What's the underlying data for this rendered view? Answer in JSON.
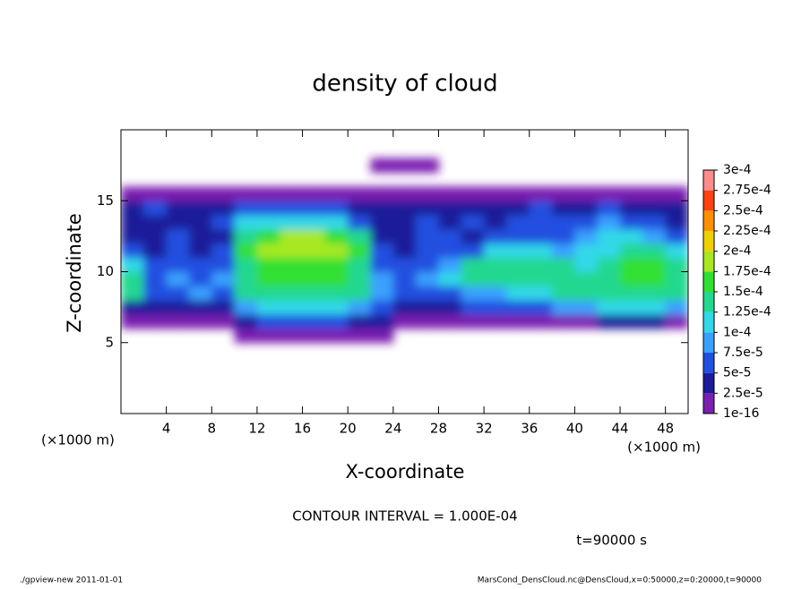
{
  "chart_data": {
    "type": "heatmap",
    "title": "density of cloud",
    "x_label": "X-coordinate",
    "y_label": "Z-coordinate",
    "x_unit": "(×1000 m)",
    "y_unit": "(×1000 m)",
    "contour_note": "CONTOUR INTERVAL = 1.000E-04",
    "time_note": "t=90000 s",
    "footer_left": "./gpview-new   2011-01-01",
    "footer_right": "MarsCond_DensCloud.nc@DensCloud,x=0:50000,z=0:20000,t=90000",
    "xlim": [
      0,
      50
    ],
    "ylim": [
      0,
      20
    ],
    "xticks": [
      4,
      8,
      12,
      16,
      20,
      24,
      28,
      32,
      36,
      40,
      44,
      48
    ],
    "yticks": [
      5,
      10,
      15
    ],
    "x": [
      1,
      3,
      5,
      7,
      9,
      11,
      13,
      15,
      17,
      19,
      21,
      23,
      25,
      27,
      29,
      31,
      33,
      35,
      37,
      39,
      41,
      43,
      45,
      47,
      49
    ],
    "y": [
      5.5,
      6.5,
      7.5,
      8.5,
      9.5,
      10.5,
      11.5,
      12.5,
      13.5,
      14.5,
      15.5,
      16.5,
      17.5
    ],
    "z": [
      [
        0,
        0,
        0,
        0,
        0,
        1e-05,
        1e-05,
        1e-05,
        1e-05,
        1e-05,
        1e-05,
        1e-05,
        0,
        0,
        0,
        0,
        0,
        0,
        0,
        0,
        0,
        0,
        0,
        0,
        0
      ],
      [
        1e-05,
        1e-05,
        1e-05,
        1e-05,
        1e-05,
        3e-05,
        6e-05,
        6e-05,
        6e-05,
        6e-05,
        3e-05,
        3e-05,
        1e-05,
        1e-05,
        1e-05,
        1e-05,
        1e-05,
        1e-05,
        1e-05,
        1e-05,
        1e-05,
        3e-05,
        3e-05,
        3e-05,
        1e-05
      ],
      [
        3e-05,
        3e-05,
        3e-05,
        3e-05,
        3e-05,
        9e-05,
        0.00011,
        0.00011,
        0.00011,
        0.00011,
        9e-05,
        6e-05,
        3e-05,
        3e-05,
        3e-05,
        6e-05,
        6e-05,
        6e-05,
        6e-05,
        9e-05,
        9e-05,
        0.00011,
        0.00011,
        0.00011,
        9e-05
      ],
      [
        0.00014,
        6e-05,
        6e-05,
        9e-05,
        6e-05,
        0.00014,
        0.00014,
        0.00014,
        0.00014,
        0.00014,
        0.00014,
        9e-05,
        6e-05,
        6e-05,
        6e-05,
        9e-05,
        9e-05,
        0.00011,
        0.00011,
        0.00014,
        0.00014,
        0.00014,
        0.00014,
        0.00014,
        0.00014
      ],
      [
        0.00014,
        6e-05,
        9e-05,
        6e-05,
        9e-05,
        0.00014,
        0.00016,
        0.00016,
        0.00016,
        0.00016,
        0.00014,
        9e-05,
        6e-05,
        9e-05,
        0.00011,
        0.00014,
        0.00014,
        0.00014,
        0.00014,
        0.00014,
        0.00014,
        0.00014,
        0.00016,
        0.00016,
        0.00014
      ],
      [
        0.00011,
        6e-05,
        6e-05,
        6e-05,
        6e-05,
        0.00014,
        0.00016,
        0.00016,
        0.00016,
        0.00016,
        0.00014,
        6e-05,
        6e-05,
        6e-05,
        9e-05,
        0.00014,
        0.00014,
        0.00014,
        0.00014,
        0.00014,
        0.00011,
        0.00014,
        0.00016,
        0.00016,
        0.00014
      ],
      [
        6e-05,
        3e-05,
        6e-05,
        3e-05,
        6e-05,
        0.00016,
        0.00018,
        0.00018,
        0.00018,
        0.00018,
        0.00016,
        6e-05,
        3e-05,
        6e-05,
        6e-05,
        6e-05,
        0.00011,
        0.00011,
        0.00011,
        9e-05,
        0.00011,
        0.00011,
        0.00014,
        0.00014,
        0.00011
      ],
      [
        3e-05,
        3e-05,
        6e-05,
        3e-05,
        3e-05,
        0.00014,
        0.00016,
        0.00018,
        0.00018,
        0.00016,
        0.00014,
        3e-05,
        3e-05,
        6e-05,
        6e-05,
        3e-05,
        6e-05,
        6e-05,
        6e-05,
        6e-05,
        9e-05,
        0.00011,
        0.00011,
        9e-05,
        6e-05
      ],
      [
        3e-05,
        3e-05,
        3e-05,
        3e-05,
        6e-05,
        0.00011,
        0.00011,
        0.00011,
        0.00011,
        0.00011,
        6e-05,
        3e-05,
        3e-05,
        6e-05,
        3e-05,
        6e-05,
        3e-05,
        6e-05,
        6e-05,
        6e-05,
        6e-05,
        9e-05,
        6e-05,
        6e-05,
        3e-05
      ],
      [
        3e-05,
        6e-05,
        3e-05,
        3e-05,
        3e-05,
        6e-05,
        6e-05,
        6e-05,
        6e-05,
        6e-05,
        3e-05,
        3e-05,
        3e-05,
        3e-05,
        3e-05,
        3e-05,
        3e-05,
        3e-05,
        6e-05,
        3e-05,
        3e-05,
        6e-05,
        3e-05,
        3e-05,
        3e-05
      ],
      [
        1e-05,
        1e-05,
        1e-05,
        1e-05,
        1e-05,
        1e-05,
        1e-05,
        1e-05,
        1e-05,
        1e-05,
        1e-05,
        1e-05,
        1e-05,
        1e-05,
        1e-05,
        1e-05,
        1e-05,
        1e-05,
        1e-05,
        1e-05,
        1e-05,
        1e-05,
        1e-05,
        1e-05,
        1e-05
      ],
      [
        0,
        0,
        0,
        0,
        0,
        0,
        0,
        0,
        0,
        0,
        0,
        0,
        0,
        0,
        0,
        0,
        0,
        0,
        0,
        0,
        0,
        0,
        0,
        0,
        0
      ],
      [
        0,
        0,
        0,
        0,
        0,
        0,
        0,
        0,
        0,
        0,
        0,
        1e-05,
        1e-05,
        1e-05,
        0,
        0,
        0,
        0,
        0,
        0,
        0,
        0,
        0,
        0,
        0
      ]
    ],
    "levels": [
      {
        "value": 1e-16,
        "label": "1e-16"
      },
      {
        "value": 2.5e-05,
        "label": "2.5e-5"
      },
      {
        "value": 5e-05,
        "label": "5e-5"
      },
      {
        "value": 7.5e-05,
        "label": "7.5e-5"
      },
      {
        "value": 0.0001,
        "label": "1e-4"
      },
      {
        "value": 0.000125,
        "label": "1.25e-4"
      },
      {
        "value": 0.00015,
        "label": "1.5e-4"
      },
      {
        "value": 0.000175,
        "label": "1.75e-4"
      },
      {
        "value": 0.0002,
        "label": "2e-4"
      },
      {
        "value": 0.000225,
        "label": "2.25e-4"
      },
      {
        "value": 0.00025,
        "label": "2.5e-4"
      },
      {
        "value": 0.000275,
        "label": "2.75e-4"
      },
      {
        "value": 0.0003,
        "label": "3e-4"
      }
    ],
    "colors": [
      "#7a1fb0",
      "#1a1a9a",
      "#2050e0",
      "#3aa0ff",
      "#30d8e8",
      "#20d890",
      "#30e030",
      "#a8e820",
      "#f0d000",
      "#ff9000",
      "#ff4010",
      "#ff8c8c"
    ]
  }
}
